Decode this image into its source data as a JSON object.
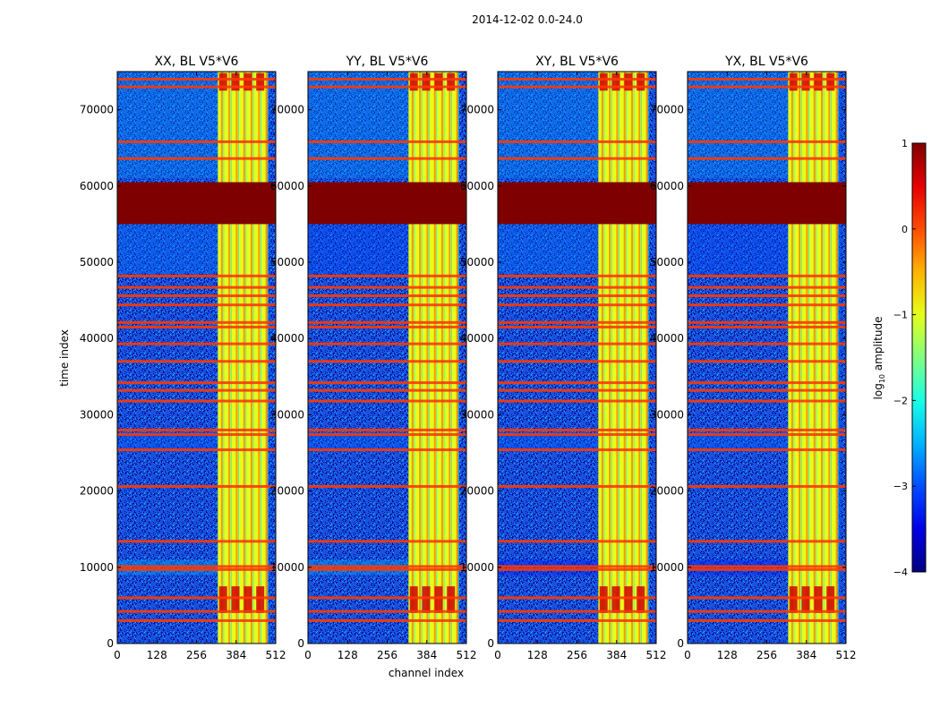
{
  "chart_data": {
    "type": "heatmap",
    "suptitle": "2014-12-02 0.0-24.0",
    "xlabel": "channel index",
    "ylabel": "time index",
    "xlim": [
      0,
      512
    ],
    "ylim": [
      0,
      75000
    ],
    "x_ticks": [
      "0",
      "128",
      "256",
      "384",
      "512"
    ],
    "y_ticks": [
      "0",
      "10000",
      "20000",
      "30000",
      "40000",
      "50000",
      "60000",
      "70000"
    ],
    "panels": [
      {
        "title": "XX, BL V5*V6"
      },
      {
        "title": "YY, BL V5*V6"
      },
      {
        "title": "XY, BL V5*V6"
      },
      {
        "title": "YX, BL V5*V6"
      }
    ],
    "colorbar": {
      "label": "log",
      "label_sub": "10",
      "label_rest": " amplitude",
      "range": [
        -4,
        1
      ],
      "ticks": [
        "1",
        "0",
        "−1",
        "−2",
        "−3",
        "−4"
      ],
      "colormap": "jet"
    },
    "features": {
      "saturated_block_time": [
        55000,
        60500
      ],
      "bright_channel_band": [
        325,
        485
      ],
      "flagged_rows_time": [
        3000,
        4200,
        6000,
        9700,
        10100,
        13400,
        20600,
        25400,
        27400,
        28000,
        31800,
        33200,
        34200,
        37000,
        39300,
        41500,
        42100,
        44400,
        45600,
        46700,
        48200,
        63600,
        65800,
        73000,
        74000
      ]
    }
  }
}
